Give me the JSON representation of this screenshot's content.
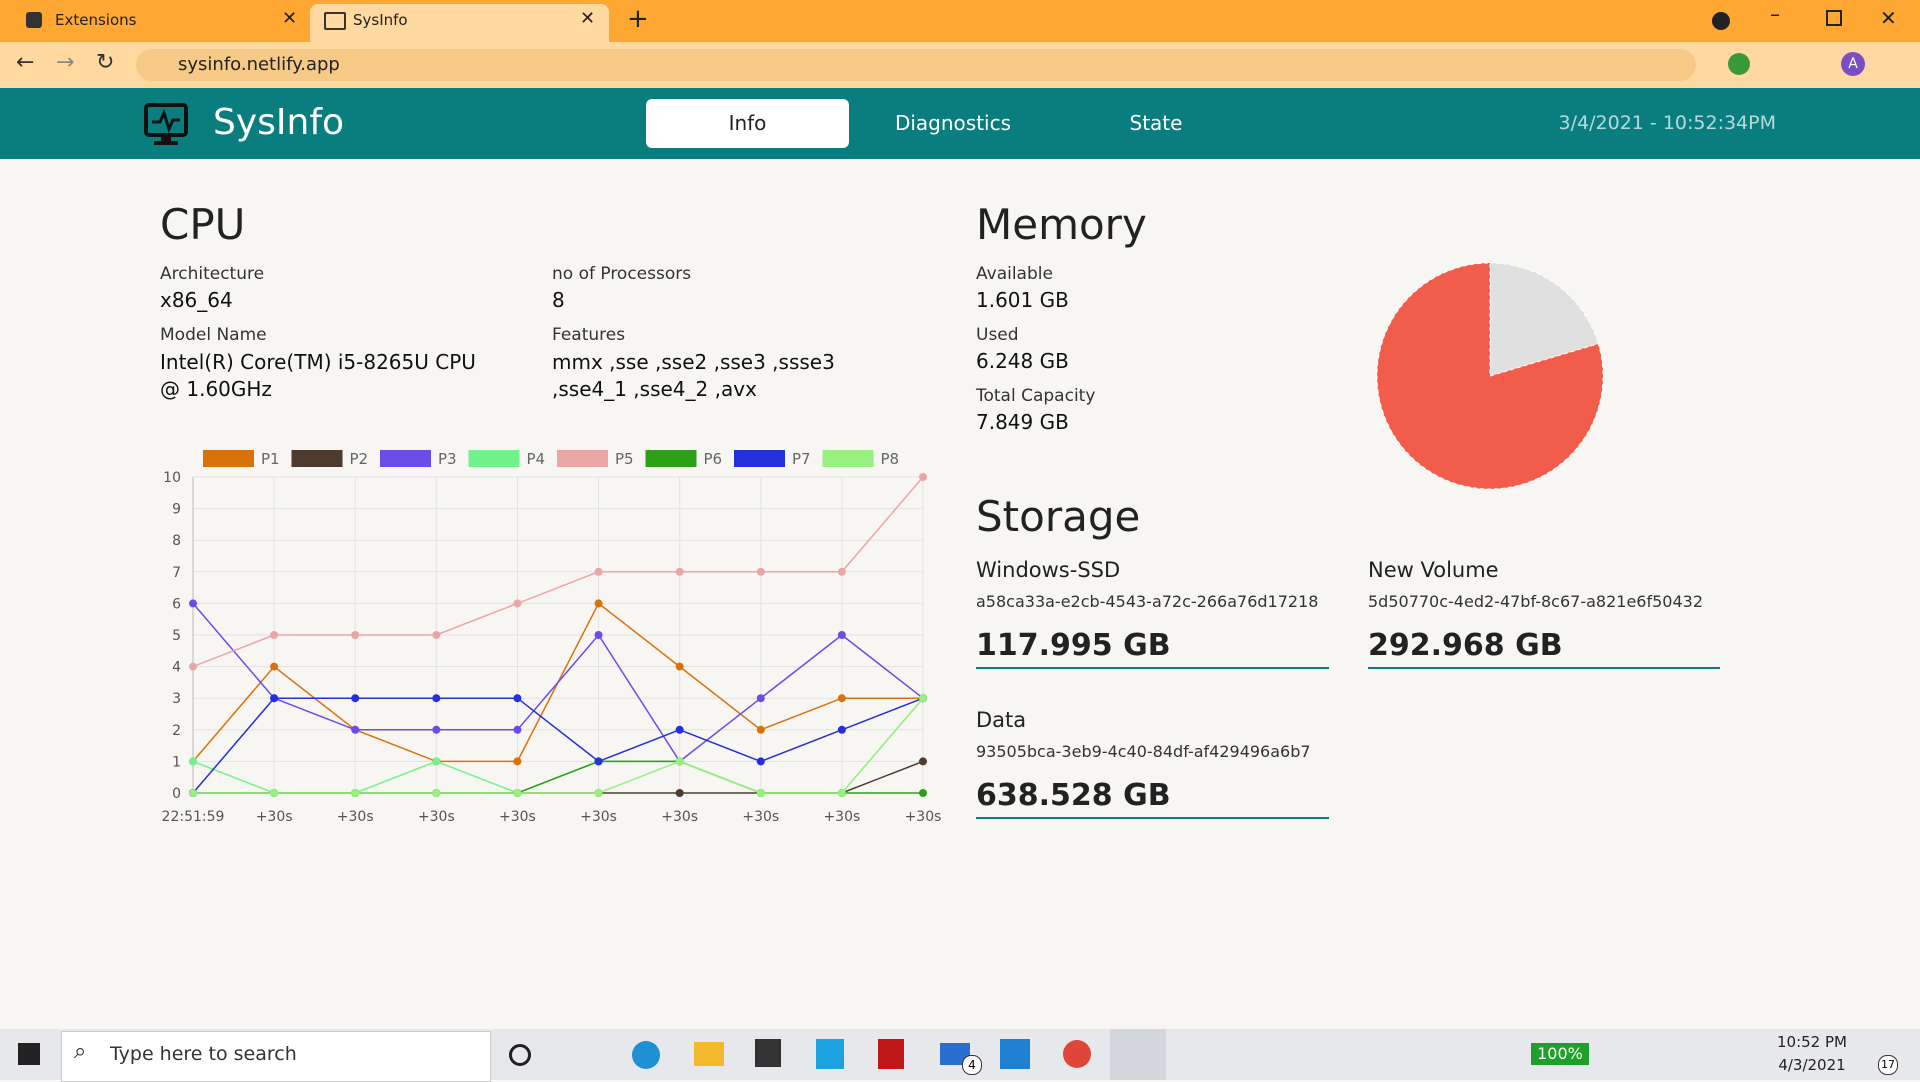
{
  "browser": {
    "tabs": [
      "Extensions",
      "SysInfo"
    ],
    "url": "sysinfo.netlify.app"
  },
  "header": {
    "title": "SysInfo",
    "nav": [
      "Info",
      "Diagnostics",
      "State"
    ],
    "datetime": "3/4/2021 - 10:52:34PM"
  },
  "cpu": {
    "title": "CPU",
    "fields": [
      {
        "label": "Architecture",
        "value": "x86_64"
      },
      {
        "label": "no of Processors",
        "value": "8"
      },
      {
        "label": "Model Name",
        "value": "Intel(R) Core(TM) i5-8265U CPU @ 1.60GHz"
      },
      {
        "label": "Features",
        "value": "mmx ,sse ,sse2 ,sse3 ,ssse3 ,sse4_1 ,sse4_2 ,avx"
      }
    ],
    "chart": {
      "type": "line",
      "categories": [
        "22:51:59",
        "+30s",
        "+30s",
        "+30s",
        "+30s",
        "+30s",
        "+30s",
        "+30s",
        "+30s",
        "+30s"
      ],
      "ylim": [
        0,
        10
      ],
      "yticks": [
        0,
        1,
        2,
        3,
        4,
        5,
        6,
        7,
        8,
        9,
        10
      ],
      "grid": true,
      "series": [
        {
          "name": "P1",
          "color": "#d9720b",
          "values": [
            1,
            4,
            2,
            1,
            1,
            6,
            4,
            2,
            3,
            3
          ]
        },
        {
          "name": "P2",
          "color": "#4d3b2f",
          "values": [
            0,
            0,
            0,
            0,
            0,
            0,
            0,
            0,
            0,
            1
          ]
        },
        {
          "name": "P3",
          "color": "#6a4de6",
          "values": [
            6,
            3,
            2,
            2,
            2,
            5,
            1,
            3,
            5,
            3
          ]
        },
        {
          "name": "P4",
          "color": "#72f28c",
          "values": [
            1,
            0,
            0,
            1,
            0,
            1,
            1,
            0,
            0,
            3
          ]
        },
        {
          "name": "P5",
          "color": "#eaa5a5",
          "values": [
            4,
            5,
            5,
            5,
            6,
            7,
            7,
            7,
            7,
            10
          ]
        },
        {
          "name": "P6",
          "color": "#2da01a",
          "values": [
            0,
            0,
            0,
            0,
            0,
            1,
            1,
            0,
            0,
            0
          ]
        },
        {
          "name": "P7",
          "color": "#2430d8",
          "values": [
            0,
            3,
            3,
            3,
            3,
            1,
            2,
            1,
            2,
            3
          ]
        },
        {
          "name": "P8",
          "color": "#98f080",
          "values": [
            0,
            0,
            0,
            0,
            0,
            0,
            1,
            0,
            0,
            3
          ]
        }
      ]
    }
  },
  "memory": {
    "title": "Memory",
    "chart": {
      "type": "pie",
      "categories": [
        "Available",
        "Used"
      ],
      "values": [
        1.601,
        6.248
      ],
      "value_labels": [
        "1.601 GB",
        "6.248 GB"
      ],
      "colors": [
        "#e0e0e0",
        "#f25c4a"
      ]
    },
    "total": {
      "label": "Total Capacity",
      "value": "7.849 GB"
    }
  },
  "storage": {
    "title": "Storage",
    "volumes": [
      {
        "name": "Windows-SSD",
        "id": "a58ca33a-e2cb-4543-a72c-266a76d17218",
        "size": "117.995 GB"
      },
      {
        "name": "New Volume",
        "id": "5d50770c-4ed2-47bf-8c67-a821e6f50432",
        "size": "292.968 GB"
      },
      {
        "name": "Data",
        "id": "93505bca-3eb9-4c40-84df-af429496a6b7",
        "size": "638.528 GB"
      }
    ]
  },
  "taskbar": {
    "search": "Type here to search",
    "battery": "100%",
    "time": "10:52 PM",
    "date": "4/3/2021",
    "mail_badge": "4",
    "notifications": "17"
  }
}
